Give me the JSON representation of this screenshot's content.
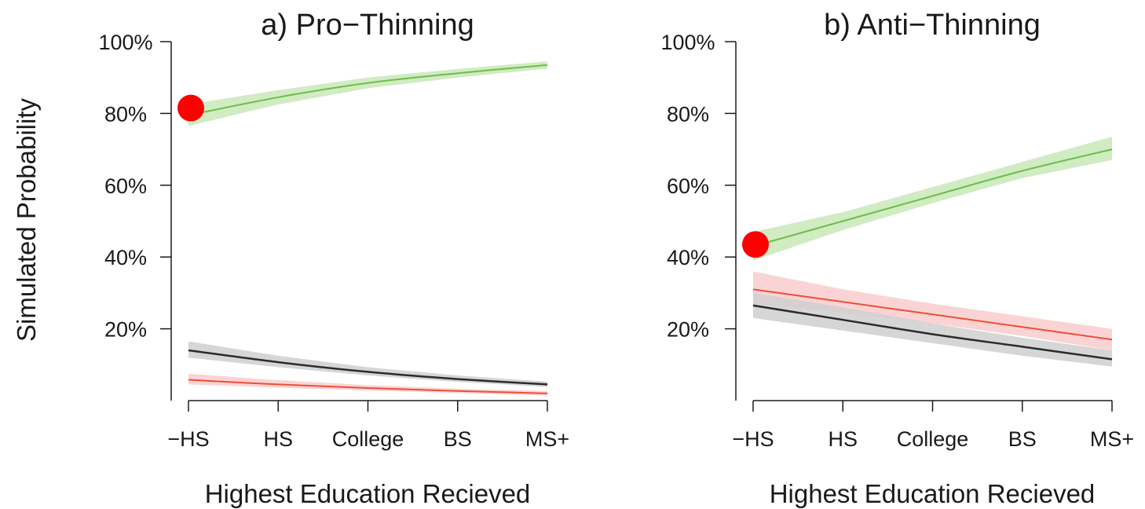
{
  "y_axis_label": "Simulated Probability",
  "colors": {
    "green": "#6cbf48",
    "green_band": "#c9e7b9",
    "red": "#ee4e3a",
    "red_band": "#f9cccc",
    "black": "#2b2b2b",
    "gray_band": "#cfcfcf",
    "marker": "#ff0000"
  },
  "chart_data": [
    {
      "type": "line",
      "title": "a) Pro−Thinning",
      "xlabel": "Highest Education Recieved",
      "ylabel": "Simulated Probability",
      "categories": [
        "−HS",
        "HS",
        "College",
        "BS",
        "MS+"
      ],
      "y_ticks": [
        "20%",
        "40%",
        "60%",
        "80%",
        "100%"
      ],
      "ylim": [
        0,
        1
      ],
      "grid": false,
      "series": [
        {
          "color": "green",
          "band": "green_band",
          "values": [
            0.795,
            0.845,
            0.885,
            0.912,
            0.935
          ],
          "lower": [
            0.765,
            0.825,
            0.87,
            0.9,
            0.925
          ],
          "upper": [
            0.825,
            0.865,
            0.9,
            0.924,
            0.945
          ]
        },
        {
          "color": "black",
          "band": "gray_band",
          "values": [
            0.14,
            0.107,
            0.08,
            0.06,
            0.045
          ],
          "lower": [
            0.12,
            0.093,
            0.07,
            0.052,
            0.038
          ],
          "upper": [
            0.165,
            0.125,
            0.093,
            0.07,
            0.053
          ]
        },
        {
          "color": "red",
          "band": "red_band",
          "values": [
            0.058,
            0.045,
            0.035,
            0.027,
            0.02
          ],
          "lower": [
            0.045,
            0.036,
            0.028,
            0.021,
            0.014
          ],
          "upper": [
            0.075,
            0.057,
            0.043,
            0.033,
            0.027
          ]
        }
      ],
      "marker": {
        "x": "−HS",
        "y": 0.815
      }
    },
    {
      "type": "line",
      "title": "b) Anti−Thinning",
      "xlabel": "Highest Education Recieved",
      "ylabel": "",
      "categories": [
        "−HS",
        "HS",
        "College",
        "BS",
        "MS+"
      ],
      "y_ticks": [
        "20%",
        "40%",
        "60%",
        "80%",
        "100%"
      ],
      "ylim": [
        0,
        1
      ],
      "grid": false,
      "series": [
        {
          "color": "green",
          "band": "green_band",
          "values": [
            0.43,
            0.5,
            0.57,
            0.64,
            0.7
          ],
          "lower": [
            0.39,
            0.475,
            0.55,
            0.62,
            0.67
          ],
          "upper": [
            0.47,
            0.525,
            0.595,
            0.665,
            0.735
          ]
        },
        {
          "color": "red",
          "band": "red_band",
          "values": [
            0.31,
            0.275,
            0.24,
            0.205,
            0.17
          ],
          "lower": [
            0.27,
            0.245,
            0.215,
            0.18,
            0.14
          ],
          "upper": [
            0.36,
            0.31,
            0.27,
            0.235,
            0.2
          ]
        },
        {
          "color": "black",
          "band": "gray_band",
          "values": [
            0.265,
            0.225,
            0.185,
            0.15,
            0.115
          ],
          "lower": [
            0.23,
            0.195,
            0.16,
            0.125,
            0.095
          ],
          "upper": [
            0.3,
            0.26,
            0.215,
            0.175,
            0.14
          ]
        }
      ],
      "marker": {
        "x": "−HS",
        "y": 0.435
      }
    }
  ]
}
